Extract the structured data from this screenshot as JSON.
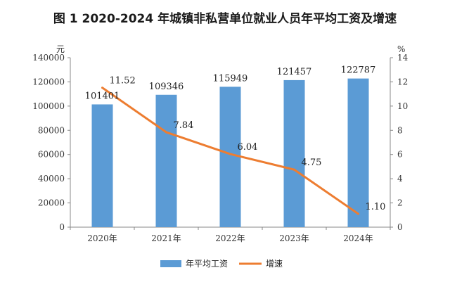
{
  "chart_data": {
    "type": "bar",
    "title": "图 1 2020-2024 年城镇非私营单位就业人员年平均工资及增速",
    "categories": [
      "2020年",
      "2021年",
      "2022年",
      "2023年",
      "2024年"
    ],
    "series": [
      {
        "name": "年平均工资",
        "type": "bar",
        "axis": "left",
        "color": "#5b9bd5",
        "values": [
          101401,
          109346,
          115949,
          121457,
          122787
        ]
      },
      {
        "name": "增速",
        "type": "line",
        "axis": "right",
        "color": "#ed7d31",
        "values": [
          11.52,
          7.84,
          6.04,
          4.75,
          1.1
        ],
        "labels": [
          "11.52",
          "7.84",
          "6.04",
          "4.75",
          "1.10"
        ]
      }
    ],
    "y_left": {
      "unit": "元",
      "min": 0,
      "max": 140000,
      "step": 20000
    },
    "y_right": {
      "unit": "%",
      "min": 0,
      "max": 14,
      "step": 2
    },
    "legend": "bottom",
    "grid": false
  }
}
